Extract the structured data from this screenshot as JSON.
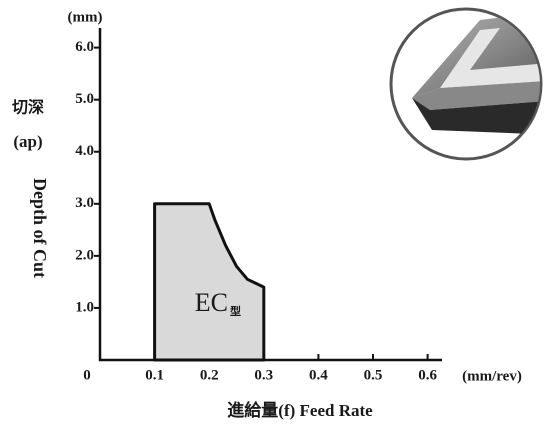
{
  "chart_data": {
    "type": "area",
    "x": [
      0.1,
      0.1,
      0.2,
      0.21,
      0.23,
      0.25,
      0.27,
      0.3,
      0.3
    ],
    "values": [
      0,
      3.0,
      3.0,
      2.7,
      2.2,
      1.8,
      1.55,
      1.4,
      0
    ],
    "color": "#d9d9d9",
    "region_label": "EC",
    "region_label_suffix": "型",
    "xlim": [
      0,
      0.63
    ],
    "ylim": [
      0,
      6.3
    ],
    "xticks": [
      0,
      0.1,
      0.2,
      0.3,
      0.4,
      0.5,
      0.6
    ],
    "yticks": [
      {
        "value": 1,
        "label": "1.0"
      },
      {
        "value": 2,
        "label": "2.0"
      },
      {
        "value": 3,
        "label": "3.0"
      },
      {
        "value": 4,
        "label": "4.0"
      },
      {
        "value": 5,
        "label": "5.0"
      },
      {
        "value": 6,
        "label": "6.0"
      }
    ],
    "x_unit": "(mm/rev)",
    "y_unit": "(mm)",
    "x_label": "進給量(f)  Feed Rate",
    "y_label_cn": "切深",
    "y_label_symbol": "(ap)",
    "y_label": "Depth of Cut"
  }
}
